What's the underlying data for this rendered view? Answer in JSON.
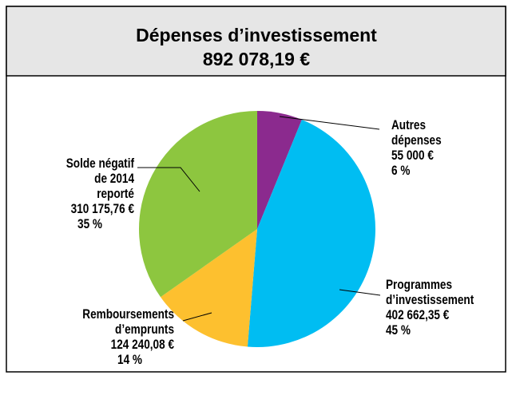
{
  "chart_data": {
    "type": "pie",
    "title": "Dépenses d’investissement",
    "subtitle": "892 078,19 €",
    "categories": [
      "Autres\ndépenses",
      "Programmes\nd’investissement",
      "Remboursements\nd’emprunts",
      "Solde négatif\nde 2014\nreporté"
    ],
    "values": [
      55000,
      402662.35,
      124240.08,
      310175.76
    ],
    "value_labels": [
      "55 000 €",
      "402 662,35 €",
      "124 240,08 €",
      "310 175,76 €"
    ],
    "percents": [
      6,
      45,
      14,
      35
    ],
    "percent_labels": [
      "6 %",
      "45 %",
      "14 %",
      "35 %"
    ],
    "colors": [
      "#8b2a8e",
      "#00bdf2",
      "#fdc02f",
      "#8dc63f"
    ]
  }
}
